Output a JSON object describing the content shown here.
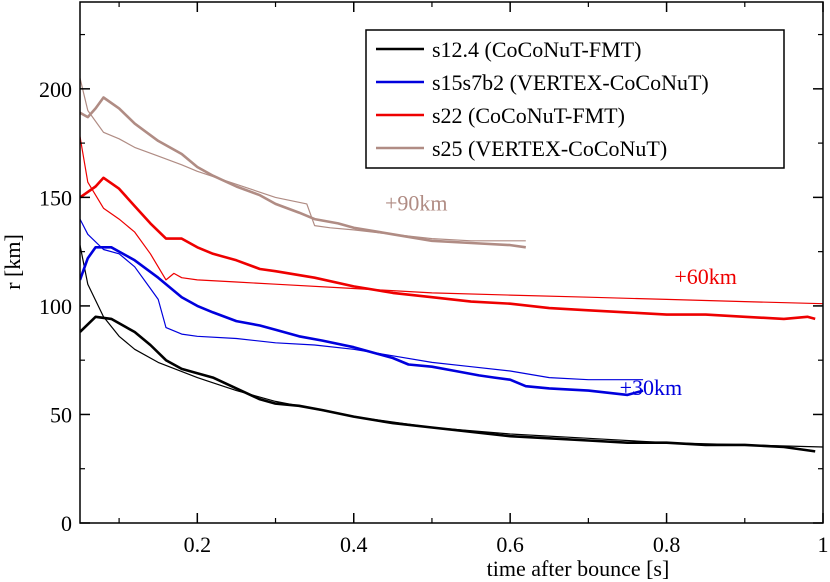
{
  "chart_data": {
    "type": "line",
    "title": "",
    "xlabel": "time after bounce [s]",
    "ylabel": "r [km]",
    "xlim": [
      0.05,
      1.0
    ],
    "ylim": [
      0,
      240
    ],
    "xticks": [
      0.2,
      0.4,
      0.6,
      0.8,
      1
    ],
    "xtick_labels": [
      "0.2",
      "0.4",
      "0.6",
      "0.8",
      "1"
    ],
    "yticks": [
      0,
      50,
      100,
      150,
      200
    ],
    "ytick_labels": [
      "0",
      "50",
      "100",
      "150",
      "200"
    ],
    "grid": false,
    "legend_position": "top-right",
    "annotations": [
      {
        "text": "+90km",
        "x": 0.44,
        "y": 144,
        "color": "#b08c84"
      },
      {
        "text": "+60km",
        "x": 0.81,
        "y": 110,
        "color": "#ee0000"
      },
      {
        "text": "+30km",
        "x": 0.74,
        "y": 59,
        "color": "#0000dd"
      }
    ],
    "series": [
      {
        "name": "s12.4 (CoCoNuT-FMT)",
        "color": "#000000",
        "offset_km": 0,
        "thick": {
          "x": [
            0.05,
            0.07,
            0.09,
            0.1,
            0.12,
            0.14,
            0.16,
            0.18,
            0.2,
            0.22,
            0.25,
            0.28,
            0.3,
            0.33,
            0.36,
            0.4,
            0.45,
            0.5,
            0.55,
            0.6,
            0.65,
            0.7,
            0.75,
            0.8,
            0.85,
            0.9,
            0.95,
            0.99
          ],
          "y": [
            88,
            95,
            94,
            92,
            88,
            82,
            75,
            71,
            69,
            67,
            62,
            57,
            55,
            54,
            52,
            49,
            46,
            44,
            42,
            40,
            39,
            38,
            37,
            37,
            36,
            36,
            35,
            33
          ]
        },
        "thin": {
          "x": [
            0.05,
            0.06,
            0.08,
            0.1,
            0.12,
            0.15,
            0.2,
            0.25,
            0.3,
            0.4,
            0.5,
            0.6,
            0.7,
            0.8,
            0.9,
            1.0
          ],
          "y": [
            128,
            110,
            95,
            86,
            80,
            74,
            67,
            61,
            56,
            49,
            44,
            41,
            39,
            37,
            36,
            35
          ]
        }
      },
      {
        "name": "s15s7b2 (VERTEX-CoCoNuT)",
        "color": "#0000dd",
        "offset_km": 30,
        "thick": {
          "x": [
            0.05,
            0.06,
            0.07,
            0.09,
            0.1,
            0.12,
            0.15,
            0.18,
            0.2,
            0.22,
            0.25,
            0.28,
            0.3,
            0.33,
            0.36,
            0.4,
            0.43,
            0.45,
            0.47,
            0.5,
            0.53,
            0.56,
            0.58,
            0.6,
            0.62,
            0.65,
            0.7,
            0.75,
            0.77
          ],
          "y": [
            112,
            122,
            127,
            127,
            125,
            121,
            113,
            104,
            100,
            97,
            93,
            91,
            89,
            86,
            84,
            81,
            78,
            76,
            73,
            72,
            70,
            68,
            67,
            66,
            63,
            62,
            61,
            59,
            61
          ]
        },
        "thin": {
          "x": [
            0.05,
            0.06,
            0.08,
            0.1,
            0.12,
            0.14,
            0.15,
            0.16,
            0.18,
            0.2,
            0.25,
            0.3,
            0.35,
            0.4,
            0.45,
            0.5,
            0.55,
            0.6,
            0.65,
            0.7,
            0.77
          ],
          "y": [
            140,
            133,
            126,
            124,
            118,
            108,
            103,
            90,
            87,
            86,
            85,
            83,
            82,
            80,
            77,
            74,
            72,
            70,
            67,
            66,
            66
          ]
        }
      },
      {
        "name": "s22 (CoCoNuT-FMT)",
        "color": "#ee0000",
        "offset_km": 60,
        "thick": {
          "x": [
            0.05,
            0.07,
            0.08,
            0.1,
            0.12,
            0.14,
            0.16,
            0.18,
            0.2,
            0.22,
            0.25,
            0.28,
            0.3,
            0.35,
            0.4,
            0.45,
            0.5,
            0.55,
            0.6,
            0.65,
            0.7,
            0.75,
            0.8,
            0.85,
            0.9,
            0.95,
            0.98,
            0.99
          ],
          "y": [
            150,
            155,
            159,
            154,
            146,
            138,
            131,
            131,
            127,
            124,
            121,
            117,
            116,
            113,
            109,
            106,
            104,
            102,
            101,
            99,
            98,
            97,
            96,
            96,
            95,
            94,
            95,
            94
          ]
        },
        "thin": {
          "x": [
            0.05,
            0.06,
            0.08,
            0.1,
            0.12,
            0.14,
            0.16,
            0.17,
            0.18,
            0.2,
            0.25,
            0.3,
            0.4,
            0.5,
            0.6,
            0.7,
            0.8,
            0.9,
            1.0
          ],
          "y": [
            178,
            157,
            145,
            140,
            134,
            124,
            112,
            115,
            113,
            112,
            111,
            110,
            108,
            106,
            105,
            104,
            103,
            102,
            101
          ]
        }
      },
      {
        "name": "s25 (VERTEX-CoCoNuT)",
        "color": "#b08c84",
        "offset_km": 90,
        "thick": {
          "x": [
            0.05,
            0.06,
            0.07,
            0.08,
            0.1,
            0.12,
            0.15,
            0.18,
            0.2,
            0.22,
            0.25,
            0.28,
            0.3,
            0.33,
            0.35,
            0.38,
            0.4,
            0.45,
            0.5,
            0.55,
            0.6,
            0.62
          ],
          "y": [
            189,
            187,
            191,
            196,
            191,
            184,
            176,
            170,
            164,
            160,
            155,
            151,
            147,
            143,
            140,
            138,
            136,
            133,
            130,
            129,
            128,
            127
          ]
        },
        "thin": {
          "x": [
            0.05,
            0.06,
            0.08,
            0.1,
            0.12,
            0.15,
            0.18,
            0.2,
            0.25,
            0.3,
            0.34,
            0.35,
            0.37,
            0.4,
            0.45,
            0.5,
            0.55,
            0.6,
            0.62
          ],
          "y": [
            205,
            190,
            180,
            177,
            173,
            169,
            165,
            162,
            156,
            150,
            147,
            137,
            136,
            135,
            133,
            131,
            130,
            130,
            130
          ]
        }
      }
    ]
  }
}
